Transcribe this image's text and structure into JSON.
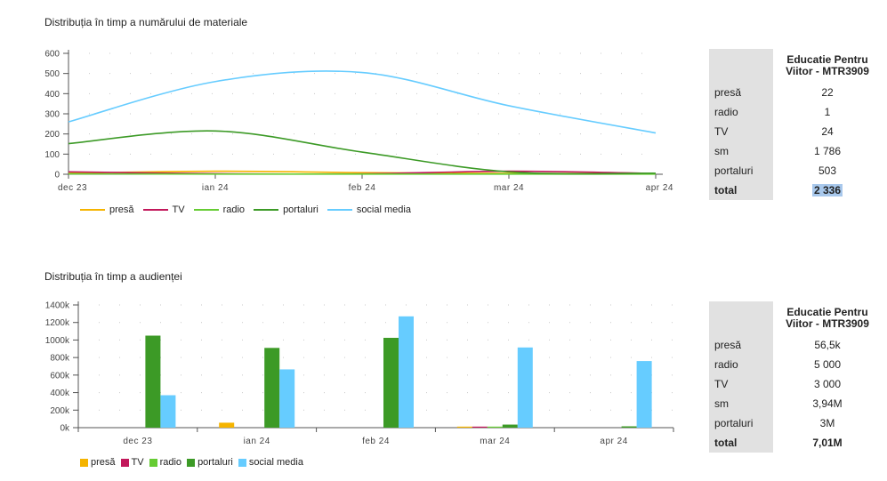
{
  "chart_data": [
    {
      "type": "line",
      "title": "Distribuția în timp a numărului de materiale",
      "categories": [
        "dec 23",
        "ian 24",
        "feb 24",
        "mar 24",
        "apr 24"
      ],
      "ylim": [
        0,
        600
      ],
      "yticks": [
        "0",
        "100",
        "200",
        "300",
        "400",
        "500",
        "600"
      ],
      "grid": "dotted",
      "legend_position": "bottom",
      "series": [
        {
          "name": "presă",
          "color": "#f5b400",
          "values": [
            5,
            15,
            8,
            4,
            3
          ]
        },
        {
          "name": "TV",
          "color": "#c2185b",
          "values": [
            12,
            3,
            2,
            15,
            4
          ]
        },
        {
          "name": "radio",
          "color": "#66cc33",
          "values": [
            2,
            1,
            1,
            1,
            1
          ]
        },
        {
          "name": "portaluri",
          "color": "#3c9a26",
          "values": [
            152,
            215,
            110,
            12,
            5
          ]
        },
        {
          "name": "social media",
          "color": "#66ccff",
          "values": [
            260,
            460,
            505,
            340,
            205
          ]
        }
      ]
    },
    {
      "type": "bar",
      "title": "Distribuția în timp a audienței",
      "categories": [
        "dec 23",
        "ian 24",
        "feb 24",
        "mar 24",
        "apr 24"
      ],
      "ylim": [
        0,
        1400000
      ],
      "yticks": [
        "0k",
        "200k",
        "400k",
        "600k",
        "800k",
        "1000k",
        "1200k",
        "1400k"
      ],
      "grid": "dotted",
      "legend_position": "bottom",
      "series": [
        {
          "name": "presă",
          "color": "#f5b400",
          "values": [
            0,
            56500,
            0,
            12000,
            0
          ]
        },
        {
          "name": "TV",
          "color": "#c2185b",
          "values": [
            0,
            0,
            0,
            12000,
            0
          ]
        },
        {
          "name": "radio",
          "color": "#66cc33",
          "values": [
            0,
            0,
            0,
            12000,
            0
          ]
        },
        {
          "name": "portaluri",
          "color": "#3c9a26",
          "values": [
            1050000,
            910000,
            1025000,
            35000,
            15000
          ]
        },
        {
          "name": "social media",
          "color": "#66ccff",
          "values": [
            370000,
            665000,
            1270000,
            915000,
            760000
          ]
        }
      ]
    }
  ],
  "tables": [
    {
      "header": "Educatie Pentru Viitor - MTR3909",
      "rows": [
        {
          "label": "presă",
          "value": "22"
        },
        {
          "label": "radio",
          "value": "1"
        },
        {
          "label": "TV",
          "value": "24"
        },
        {
          "label": "sm",
          "value": "1 786"
        },
        {
          "label": "portaluri",
          "value": "503"
        }
      ],
      "total_label": "total",
      "total_value": "2 336"
    },
    {
      "header": "Educatie Pentru Viitor - MTR3909",
      "rows": [
        {
          "label": "presă",
          "value": "56,5k"
        },
        {
          "label": "radio",
          "value": "5 000"
        },
        {
          "label": "TV",
          "value": "3 000"
        },
        {
          "label": "sm",
          "value": "3,94M"
        },
        {
          "label": "portaluri",
          "value": "3M"
        }
      ],
      "total_label": "total",
      "total_value": "7,01M"
    }
  ]
}
